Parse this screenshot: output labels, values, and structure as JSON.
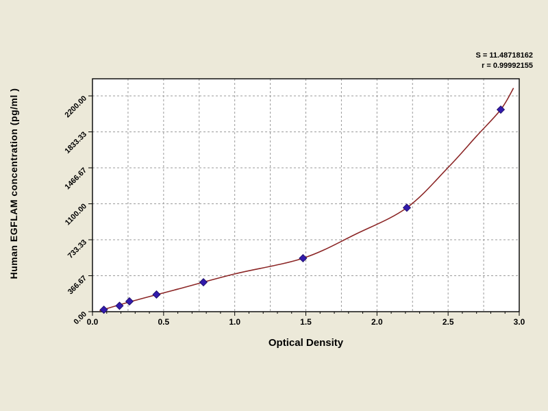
{
  "page": {
    "bg": "#ece9d9"
  },
  "annotation": {
    "line1": "S = 11.48718162",
    "line2": "r = 0.99992155"
  },
  "chart_data": {
    "type": "scatter",
    "title": "",
    "xlabel": "Optical Density",
    "ylabel": "Human EGFLAM concentration (pg/ml )",
    "xlim": [
      0,
      3.0
    ],
    "ylim": [
      0,
      2200
    ],
    "grid": "dashed",
    "x_ticks": [
      0.0,
      0.5,
      1.0,
      1.5,
      2.0,
      2.5,
      3.0
    ],
    "x_tick_labels": [
      "0.0",
      "0.5",
      "1.0",
      "1.5",
      "2.0",
      "2.5",
      "3.0"
    ],
    "y_ticks": [
      0,
      366.67,
      733.33,
      1100,
      1466.67,
      1833.33,
      2200
    ],
    "y_tick_labels": [
      "0.00",
      "366.67",
      "733.33",
      "1100.00",
      "1466.67",
      "1833.33",
      "2200.00"
    ],
    "points": [
      [
        0.08,
        20
      ],
      [
        0.19,
        60
      ],
      [
        0.26,
        105
      ],
      [
        0.45,
        175
      ],
      [
        0.78,
        300
      ],
      [
        1.48,
        545
      ],
      [
        2.21,
        1060
      ],
      [
        2.87,
        2060
      ]
    ],
    "curve": [
      [
        0.05,
        10
      ],
      [
        0.3,
        115
      ],
      [
        0.6,
        230
      ],
      [
        1.0,
        385
      ],
      [
        1.48,
        545
      ],
      [
        1.85,
        790
      ],
      [
        2.21,
        1060
      ],
      [
        2.5,
        1470
      ],
      [
        2.7,
        1790
      ],
      [
        2.87,
        2060
      ],
      [
        2.96,
        2280
      ]
    ],
    "colors": {
      "curve": "#8b2525",
      "marker": "#321bac",
      "grid": "#9a9a9a",
      "frame": "#000000",
      "plot_bg": "#ffffff",
      "page_bg": "#ece9d9"
    }
  }
}
